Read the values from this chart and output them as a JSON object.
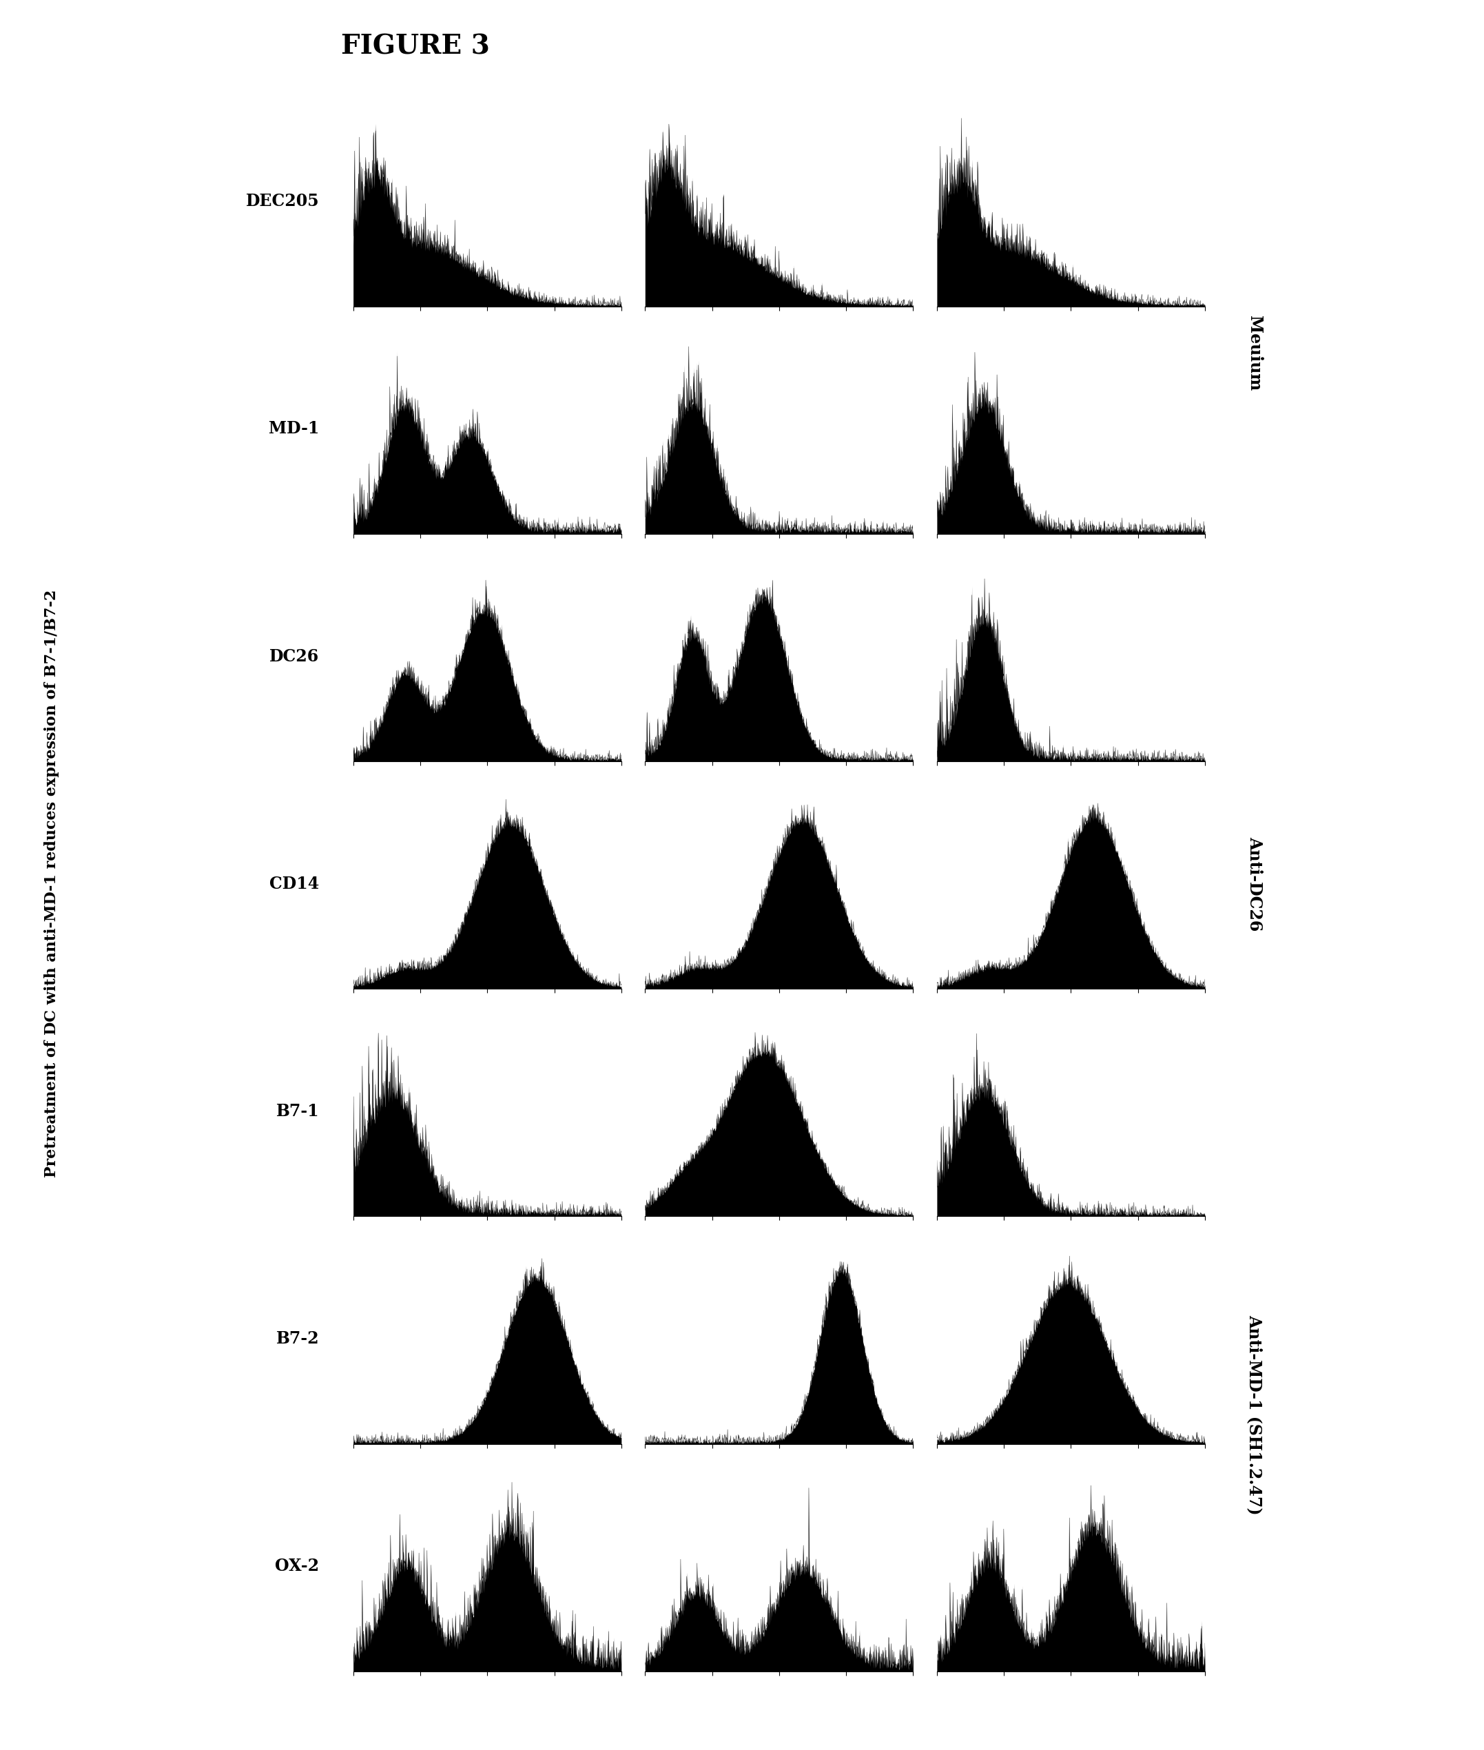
{
  "figure_title": "FIGURE 3",
  "subtitle": "Pretreatment of DC with anti-MD-1 reduces expression of B7-1/B7-2",
  "row_labels": [
    "DEC205",
    "MD-1",
    "DC26",
    "CD14",
    "B7-1",
    "B7-2",
    "OX-2"
  ],
  "col_labels": [
    "Meuium",
    "Anti-DC26",
    "Anti-MD-1 (SH1.2.47)"
  ],
  "bg_color": "#ffffff",
  "n_rows": 7,
  "n_cols": 3,
  "title_fontsize": 28,
  "subtitle_fontsize": 16,
  "row_label_fontsize": 17,
  "col_label_fontsize": 17
}
